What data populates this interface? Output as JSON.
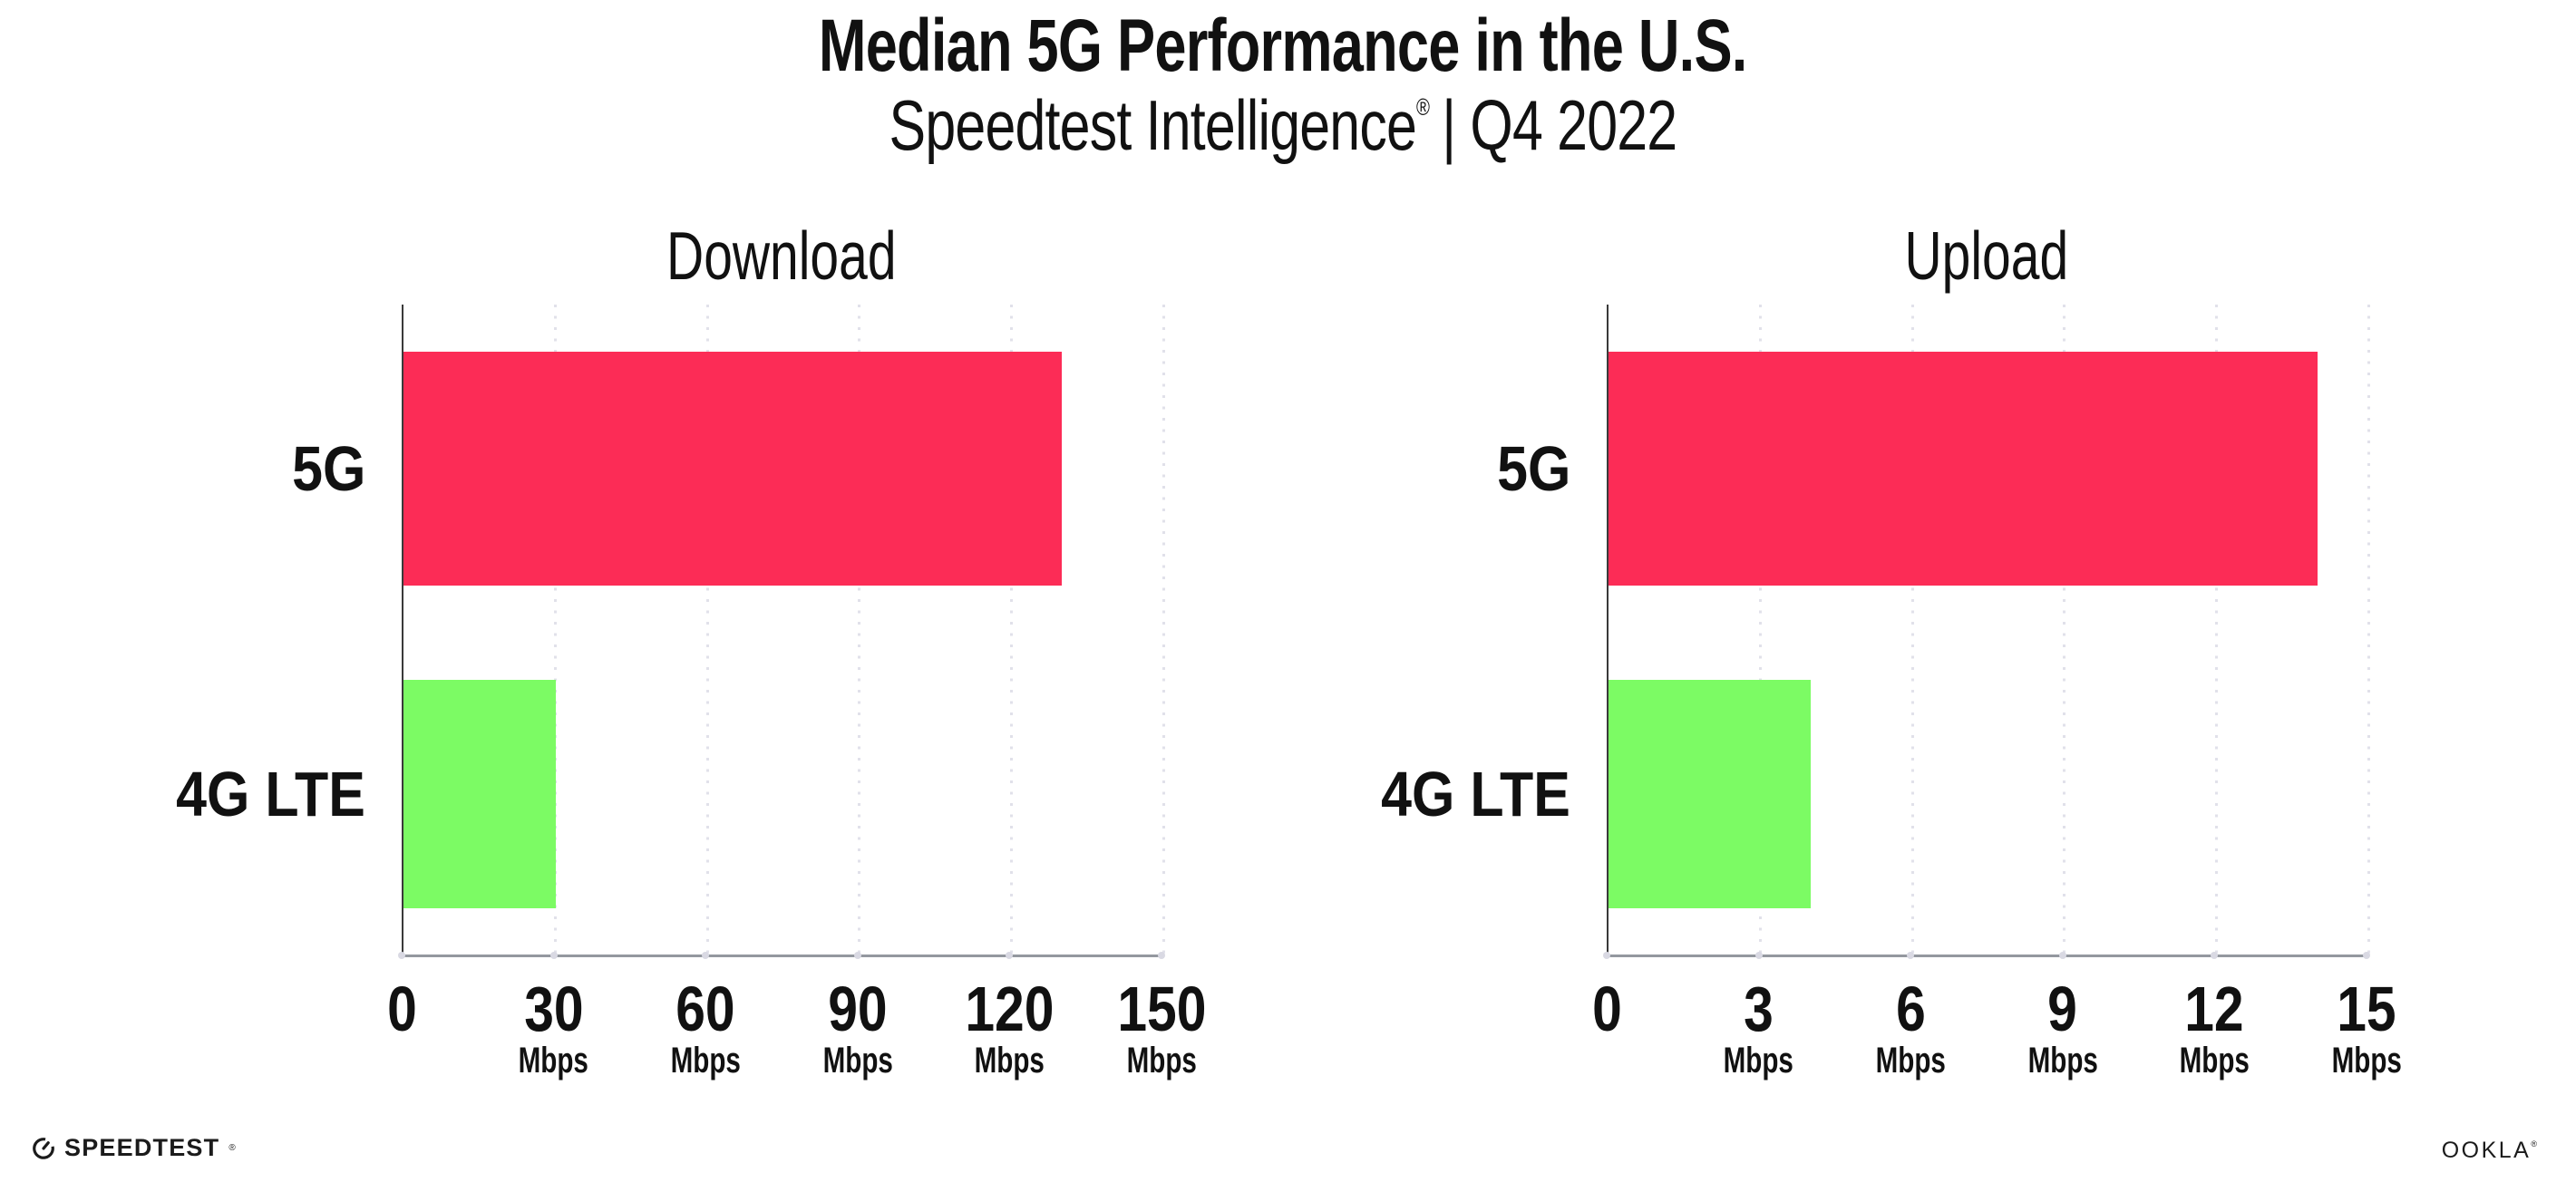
{
  "header": {
    "title": "Median 5G Performance in the U.S.",
    "subtitle_brand": "Speedtest Intelligence",
    "subtitle_reg": "®",
    "subtitle_rest": "| Q4 2022"
  },
  "colors": {
    "bar_5g": "#FC2C56",
    "bar_4g_lte": "#7CFB64",
    "axis_x": "#94989F",
    "axis_y": "#3A3A3A",
    "gridline": "#E1E1EA",
    "tick_mark": "#D9D9E3",
    "text": "#111111",
    "background": "#FFFFFF"
  },
  "chart_data": [
    {
      "type": "bar",
      "orientation": "horizontal",
      "title": "Download",
      "categories": [
        "5G",
        "4G LTE"
      ],
      "values": [
        130,
        30
      ],
      "unit": "Mbps",
      "xlim": [
        0,
        150
      ],
      "xticks": [
        0,
        30,
        60,
        90,
        120,
        150
      ],
      "tick_unit_label": "Mbps",
      "bar_colors": [
        "#FC2C56",
        "#7CFB64"
      ],
      "grid": "dotted-vertical",
      "legend": "none"
    },
    {
      "type": "bar",
      "orientation": "horizontal",
      "title": "Upload",
      "categories": [
        "5G",
        "4G LTE"
      ],
      "values": [
        14,
        4
      ],
      "unit": "Mbps",
      "xlim": [
        0,
        15
      ],
      "xticks": [
        0,
        3,
        6,
        9,
        12,
        15
      ],
      "tick_unit_label": "Mbps",
      "bar_colors": [
        "#FC2C56",
        "#7CFB64"
      ],
      "grid": "dotted-vertical",
      "legend": "none"
    }
  ],
  "footer": {
    "speedtest_label": "SPEEDTEST",
    "speedtest_reg": "®",
    "ookla_label": "OOKLA",
    "ookla_reg": "®"
  }
}
